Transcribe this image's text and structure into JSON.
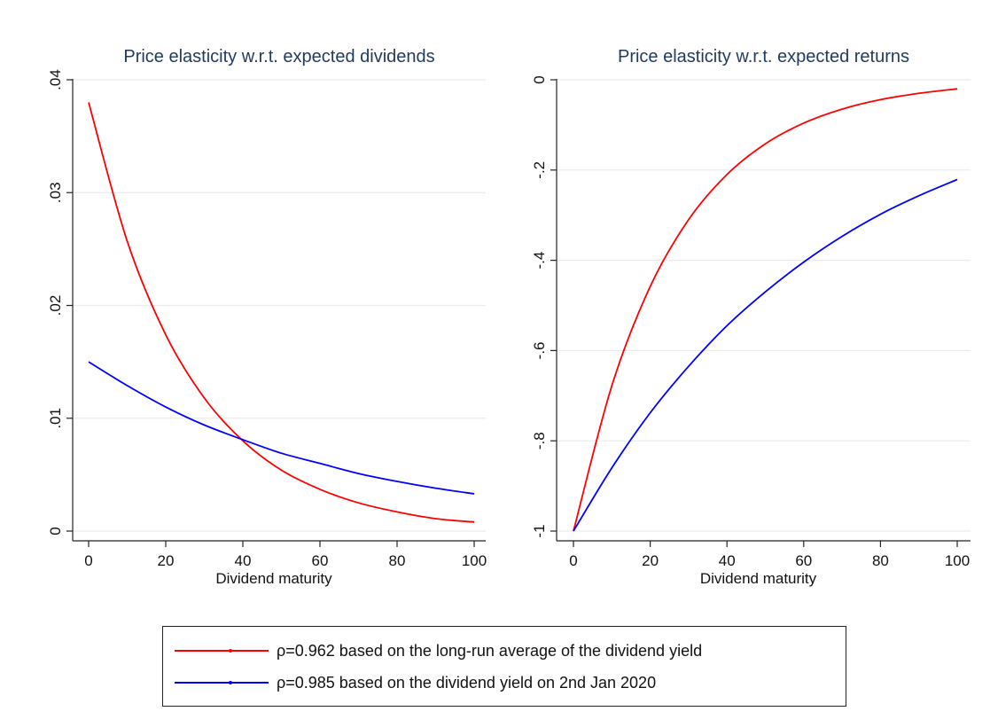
{
  "chart_data": [
    {
      "type": "line",
      "title": "Price elasticity w.r.t. expected dividends",
      "xlabel": "Dividend maturity",
      "ylabel": "",
      "xlim": [
        0,
        100
      ],
      "ylim": [
        0,
        0.04
      ],
      "x_ticks": [
        0,
        20,
        40,
        60,
        80,
        100
      ],
      "x_tick_labels": [
        "0",
        "20",
        "40",
        "60",
        "80",
        "100"
      ],
      "y_ticks": [
        0,
        0.01,
        0.02,
        0.03,
        0.04
      ],
      "y_tick_labels": [
        "0",
        ".01",
        ".02",
        ".03",
        ".04"
      ],
      "grid": true,
      "series": [
        {
          "name": "ρ=0.962 based on the long-run average of the dividend yield",
          "color": "#ff0000",
          "x": [
            0,
            10,
            20,
            30,
            40,
            50,
            60,
            70,
            80,
            90,
            100
          ],
          "y": [
            0.038,
            0.0257,
            0.0174,
            0.0118,
            0.008,
            0.0054,
            0.0037,
            0.0025,
            0.0017,
            0.0011,
            0.0008
          ]
        },
        {
          "name": "ρ=0.985 based on the dividend yield on 2nd Jan 2020",
          "color": "#0000ff",
          "x": [
            0,
            10,
            20,
            30,
            40,
            50,
            60,
            70,
            80,
            90,
            100
          ],
          "y": [
            0.015,
            0.0129,
            0.011,
            0.0094,
            0.0081,
            0.0069,
            0.006,
            0.0051,
            0.0044,
            0.0038,
            0.0033
          ]
        }
      ]
    },
    {
      "type": "line",
      "title": "Price elasticity w.r.t. expected returns",
      "xlabel": "Dividend maturity",
      "ylabel": "",
      "xlim": [
        0,
        100
      ],
      "ylim": [
        -1,
        0
      ],
      "x_ticks": [
        0,
        20,
        40,
        60,
        80,
        100
      ],
      "x_tick_labels": [
        "0",
        "20",
        "40",
        "60",
        "80",
        "100"
      ],
      "y_ticks": [
        -1,
        -0.8,
        -0.6,
        -0.4,
        -0.2,
        0
      ],
      "y_tick_labels": [
        "-1",
        "-.8",
        "-.6",
        "-.4",
        "-.2",
        "0"
      ],
      "grid": true,
      "series": [
        {
          "name": "ρ=0.962 based on the long-run average of the dividend yield",
          "color": "#ff0000",
          "x": [
            0,
            10,
            20,
            30,
            40,
            50,
            60,
            70,
            80,
            90,
            100
          ],
          "y": [
            -1.0,
            -0.678,
            -0.458,
            -0.31,
            -0.21,
            -0.142,
            -0.096,
            -0.065,
            -0.044,
            -0.03,
            -0.02
          ]
        },
        {
          "name": "ρ=0.985 based on the dividend yield on 2nd Jan 2020",
          "color": "#0000ff",
          "x": [
            0,
            10,
            20,
            30,
            40,
            50,
            60,
            70,
            80,
            90,
            100
          ],
          "y": [
            -1.0,
            -0.86,
            -0.738,
            -0.635,
            -0.545,
            -0.47,
            -0.404,
            -0.347,
            -0.298,
            -0.257,
            -0.221
          ]
        }
      ]
    }
  ],
  "legend": {
    "placement": "bottom-center",
    "items": [
      {
        "label": "ρ=0.962 based on the long-run average of the dividend yield",
        "color": "#ff0000"
      },
      {
        "label": "ρ=0.985 based on the dividend yield on 2nd Jan 2020",
        "color": "#0000ff"
      }
    ]
  }
}
